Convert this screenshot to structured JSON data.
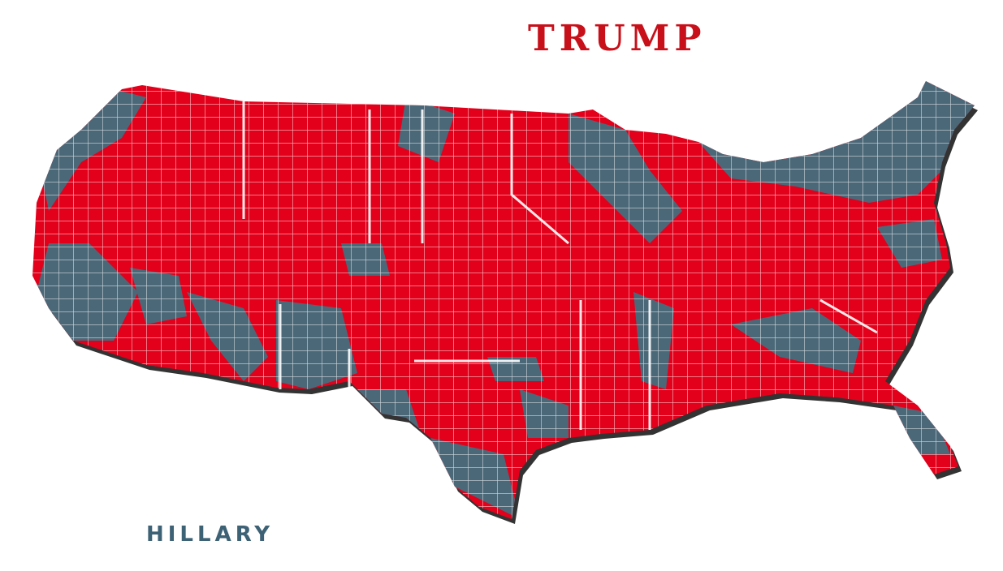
{
  "labels": {
    "trump": "TRUMP",
    "hillary": "HILLARY"
  }
}
